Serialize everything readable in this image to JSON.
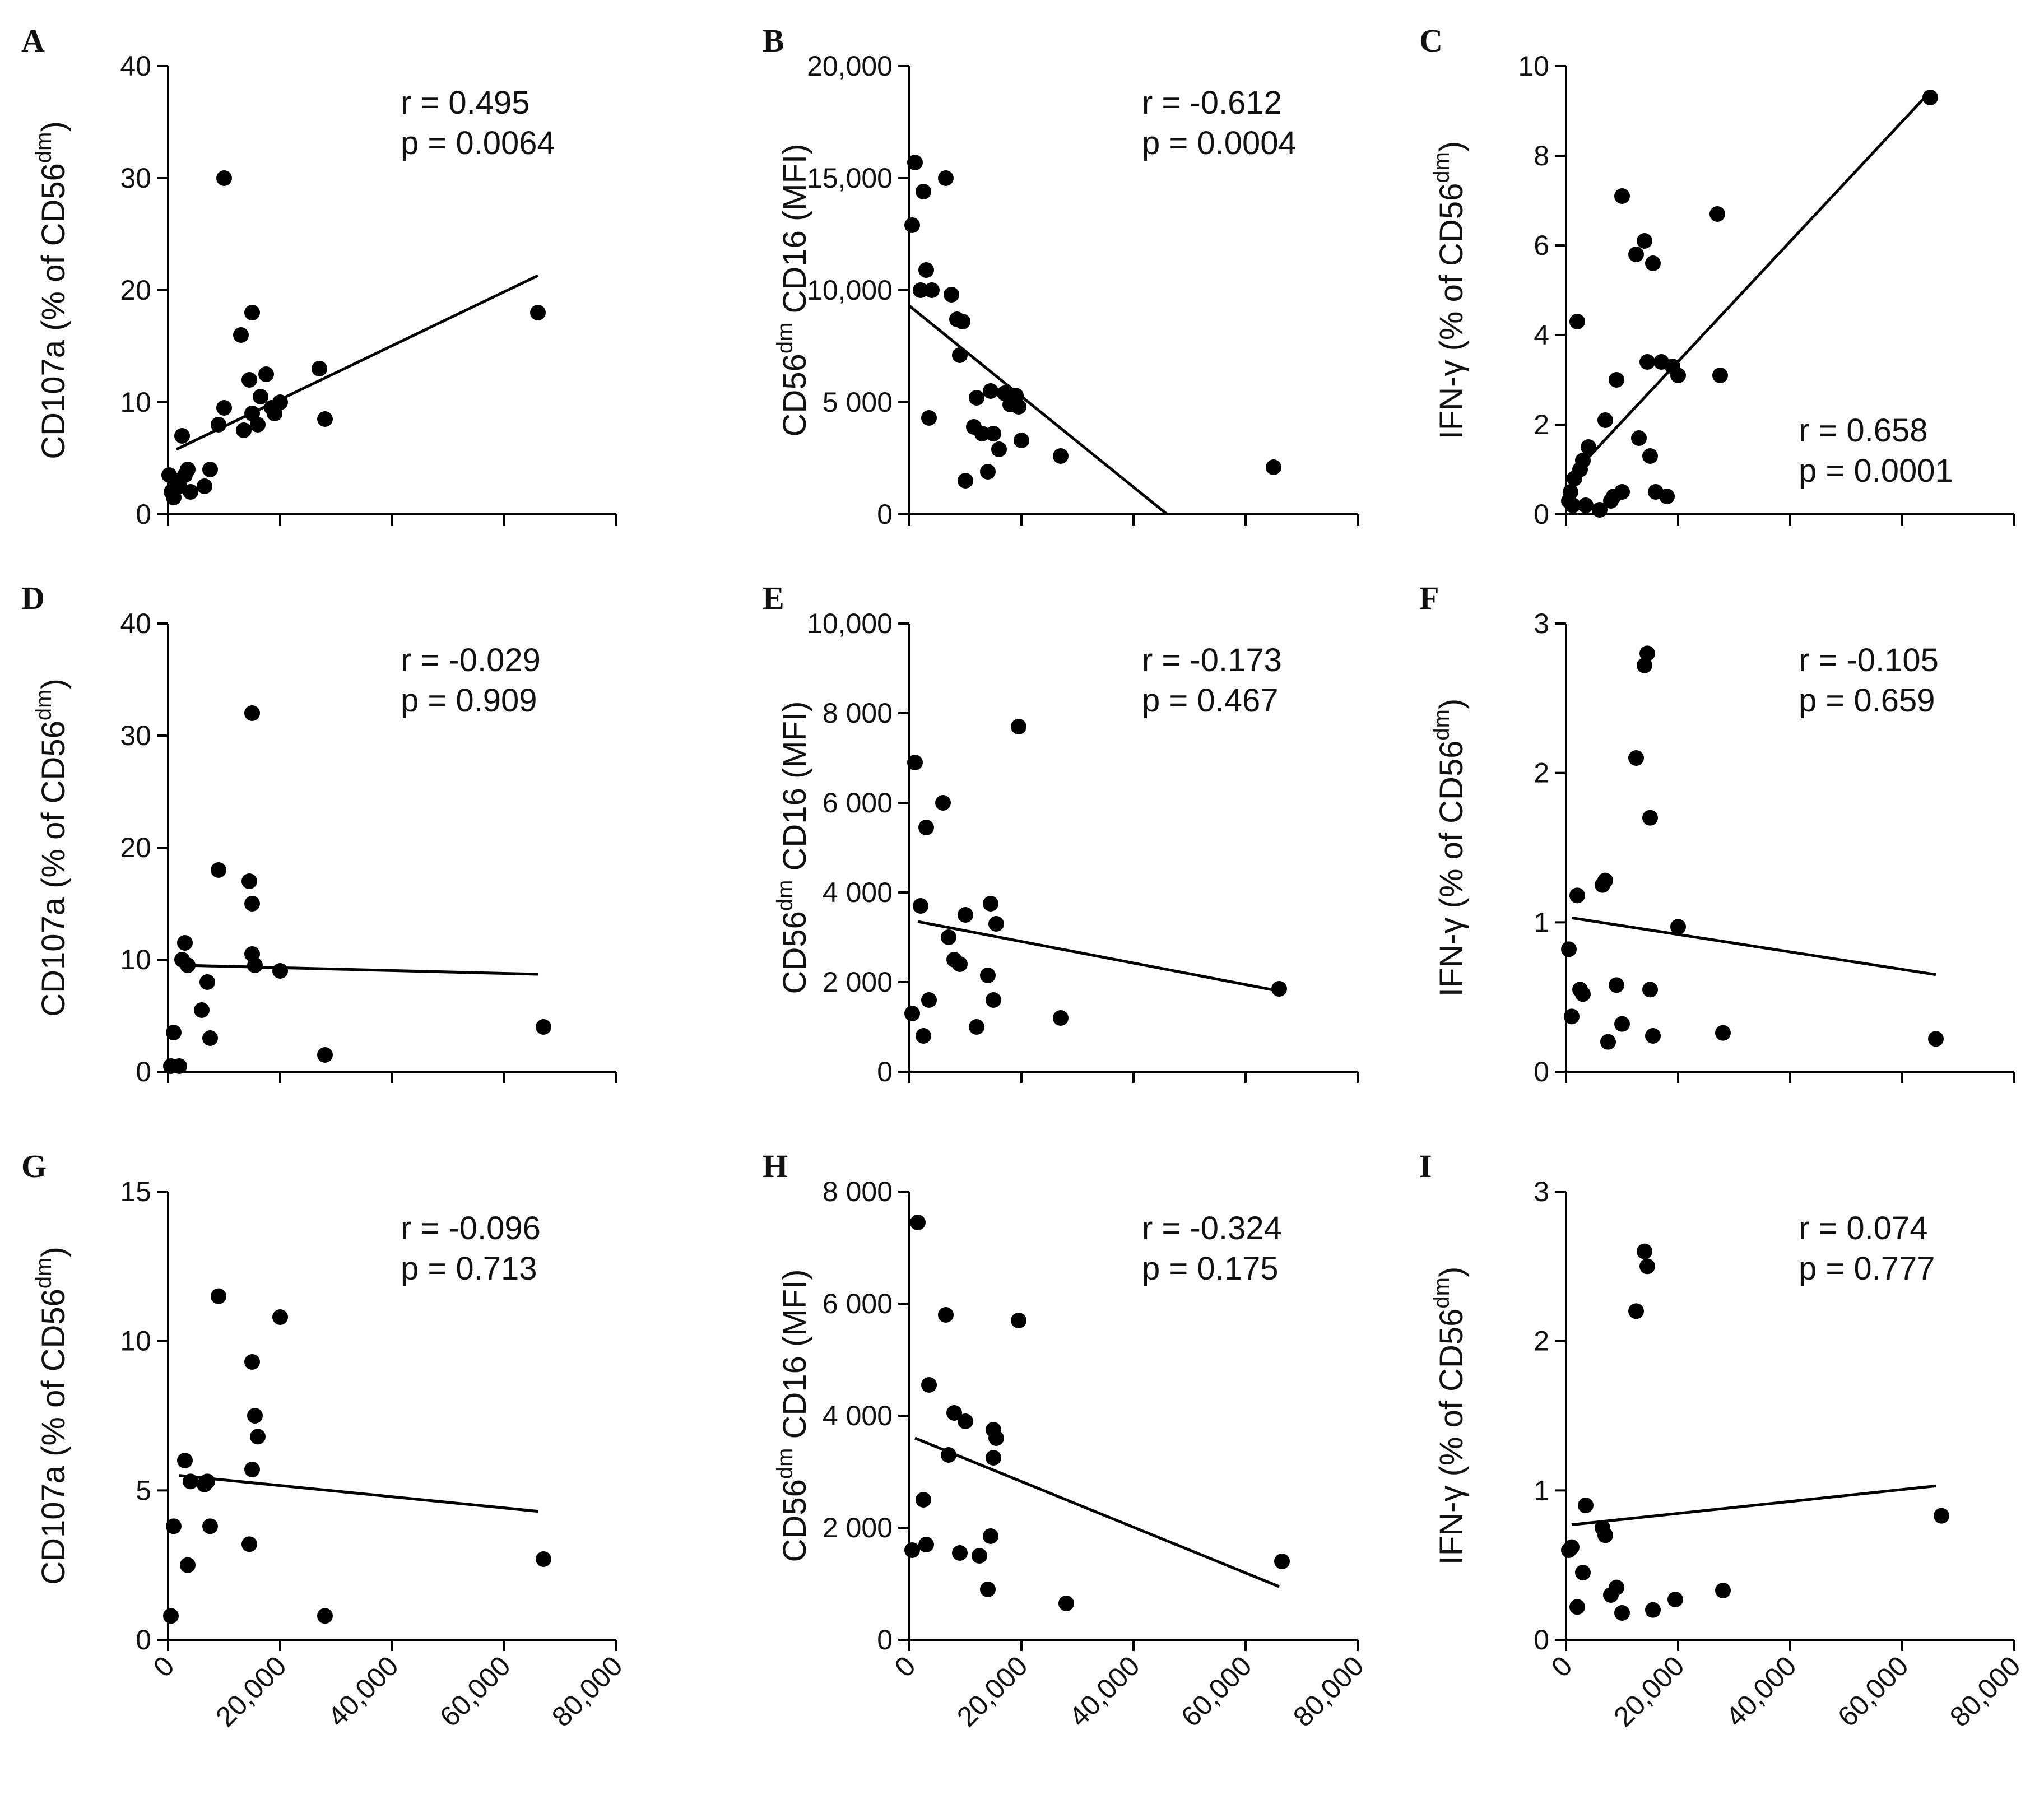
{
  "figure": {
    "point_color": "#000000",
    "axis_color": "#000000"
  },
  "chart_data": [
    {
      "panel": "A",
      "type": "scatter",
      "ylabel_main": "CD107a (% of CD56",
      "ylabel_sup": "dm",
      "ylabel_end": ")",
      "xlim": [
        0,
        80000
      ],
      "ylim": [
        0,
        40
      ],
      "yticks": [
        0,
        10,
        20,
        30,
        40
      ],
      "ytick_labels": [
        "0",
        "10",
        "20",
        "30",
        "40"
      ],
      "xticks": [
        0,
        20000,
        40000,
        60000,
        80000
      ],
      "xtick_labels": [
        "0",
        "20,000",
        "40,000",
        "60,000",
        "80,000"
      ],
      "show_xtick_labels": false,
      "stat_r": "r = 0.495",
      "stat_p": "p = 0.0064",
      "stat_pos": "top-right",
      "fit": [
        [
          1500,
          5.8
        ],
        [
          66000,
          21.3
        ]
      ],
      "x": [
        200,
        600,
        1000,
        1500,
        2000,
        2500,
        3000,
        3500,
        4000,
        6500,
        7500,
        9000,
        10000,
        10000,
        13000,
        13500,
        14500,
        15000,
        15000,
        16000,
        16500,
        17500,
        18500,
        19000,
        20000,
        27000,
        28000,
        66000
      ],
      "y": [
        3.5,
        2.0,
        1.5,
        3.0,
        2.5,
        7.0,
        3.5,
        4.0,
        2.0,
        2.5,
        4.0,
        8.0,
        9.5,
        30.0,
        16.0,
        7.5,
        12.0,
        18.0,
        9.0,
        8.0,
        10.5,
        12.5,
        9.5,
        9.0,
        10.0,
        13.0,
        8.5,
        18.0
      ]
    },
    {
      "panel": "B",
      "type": "scatter",
      "ylabel_main": "CD56",
      "ylabel_sup": "dm",
      "ylabel_end": " CD16 (MFI)",
      "xlim": [
        0,
        80000
      ],
      "ylim": [
        0,
        20000
      ],
      "yticks": [
        0,
        5000,
        10000,
        15000,
        20000
      ],
      "ytick_labels": [
        "0",
        "5 000",
        "10,000",
        "15,000",
        "20,000"
      ],
      "xticks": [
        0,
        20000,
        40000,
        60000,
        80000
      ],
      "xtick_labels": [
        "0",
        "20,000",
        "40,000",
        "60,000",
        "80,000"
      ],
      "show_xtick_labels": false,
      "stat_r": "r = -0.612",
      "stat_p": "p = 0.0004",
      "stat_pos": "top-right",
      "fit": [
        [
          0,
          9300
        ],
        [
          46000,
          0
        ]
      ],
      "x": [
        500,
        1000,
        2000,
        2500,
        3000,
        3500,
        4000,
        6500,
        7500,
        8500,
        9000,
        9500,
        10000,
        11500,
        12000,
        13000,
        14000,
        14500,
        15000,
        16000,
        17000,
        18000,
        19000,
        19500,
        20000,
        27000,
        65000
      ],
      "y": [
        12900,
        15700,
        10000,
        14400,
        10900,
        4300,
        10000,
        15000,
        9800,
        8700,
        7100,
        8600,
        1500,
        3900,
        5200,
        3600,
        1900,
        5500,
        3600,
        2900,
        5400,
        4900,
        5300,
        4800,
        3300,
        2600,
        2100
      ]
    },
    {
      "panel": "C",
      "type": "scatter",
      "ylabel_main": "IFN-γ (% of CD56",
      "ylabel_sup": "dm",
      "ylabel_end": ")",
      "xlim": [
        0,
        80000
      ],
      "ylim": [
        0,
        10
      ],
      "yticks": [
        0,
        2,
        4,
        6,
        8,
        10
      ],
      "ytick_labels": [
        "0",
        "2",
        "4",
        "6",
        "8",
        "10"
      ],
      "xticks": [
        0,
        20000,
        40000,
        60000,
        80000
      ],
      "xtick_labels": [
        "0",
        "20,000",
        "40,000",
        "60,000",
        "80,000"
      ],
      "show_xtick_labels": false,
      "stat_r": "r = 0.658",
      "stat_p": "p = 0.0001",
      "stat_pos": "bottom-right",
      "fit": [
        [
          2000,
          1.0
        ],
        [
          64000,
          9.3
        ]
      ],
      "x": [
        500,
        800,
        1200,
        1500,
        2000,
        2500,
        3000,
        3500,
        4000,
        6000,
        7000,
        8000,
        8500,
        9000,
        10000,
        10000,
        12500,
        13000,
        14000,
        14500,
        15000,
        15500,
        16000,
        17000,
        18000,
        19000,
        20000,
        27000,
        27500,
        65000
      ],
      "y": [
        0.3,
        0.5,
        0.2,
        0.8,
        4.3,
        1.0,
        1.2,
        0.2,
        1.5,
        0.1,
        2.1,
        0.3,
        0.4,
        3.0,
        7.1,
        0.5,
        5.8,
        1.7,
        6.1,
        3.4,
        1.3,
        5.6,
        0.5,
        3.4,
        0.4,
        3.3,
        3.1,
        6.7,
        3.1,
        9.3
      ]
    },
    {
      "panel": "D",
      "type": "scatter",
      "ylabel_main": "CD107a (% of CD56",
      "ylabel_sup": "dm",
      "ylabel_end": ")",
      "xlim": [
        0,
        80000
      ],
      "ylim": [
        0,
        40
      ],
      "yticks": [
        0,
        10,
        20,
        30,
        40
      ],
      "ytick_labels": [
        "0",
        "10",
        "20",
        "30",
        "40"
      ],
      "xticks": [
        0,
        20000,
        40000,
        60000,
        80000
      ],
      "xtick_labels": [
        "0",
        "20,000",
        "40,000",
        "60,000",
        "80,000"
      ],
      "show_xtick_labels": false,
      "stat_r": "r = -0.029",
      "stat_p": "p = 0.909",
      "stat_pos": "top-right",
      "fit": [
        [
          3000,
          9.5
        ],
        [
          66000,
          8.7
        ]
      ],
      "x": [
        500,
        1000,
        2000,
        2500,
        3000,
        3500,
        6000,
        7000,
        7500,
        9000,
        14500,
        15000,
        15000,
        15000,
        15500,
        20000,
        28000,
        67000
      ],
      "y": [
        0.5,
        3.5,
        0.5,
        10.0,
        11.5,
        9.5,
        5.5,
        8.0,
        3.0,
        18.0,
        17.0,
        32.0,
        15.0,
        10.5,
        9.5,
        9.0,
        1.5,
        4.0
      ]
    },
    {
      "panel": "E",
      "type": "scatter",
      "ylabel_main": "CD56",
      "ylabel_sup": "dm",
      "ylabel_end": " CD16 (MFI)",
      "xlim": [
        0,
        80000
      ],
      "ylim": [
        0,
        10000
      ],
      "yticks": [
        0,
        2000,
        4000,
        6000,
        8000,
        10000
      ],
      "ytick_labels": [
        "0",
        "2 000",
        "4 000",
        "6 000",
        "8 000",
        "10,000"
      ],
      "xticks": [
        0,
        20000,
        40000,
        60000,
        80000
      ],
      "xtick_labels": [
        "0",
        "20,000",
        "40,000",
        "60,000",
        "80,000"
      ],
      "show_xtick_labels": false,
      "stat_r": "r = -0.173",
      "stat_p": "p = 0.467",
      "stat_pos": "top-right",
      "fit": [
        [
          1500,
          3350
        ],
        [
          66000,
          1800
        ]
      ],
      "x": [
        500,
        1000,
        2000,
        2500,
        3000,
        3500,
        6000,
        7000,
        8000,
        9000,
        10000,
        12000,
        14000,
        14500,
        15000,
        15500,
        19500,
        27000,
        66000
      ],
      "y": [
        1300,
        6900,
        3700,
        800,
        5450,
        1600,
        6000,
        3000,
        2500,
        2400,
        3500,
        1000,
        2150,
        3750,
        1600,
        3300,
        7700,
        1200,
        1850
      ]
    },
    {
      "panel": "F",
      "type": "scatter",
      "ylabel_main": "IFN-γ (% of CD56",
      "ylabel_sup": "dm",
      "ylabel_end": ")",
      "xlim": [
        0,
        80000
      ],
      "ylim": [
        0,
        3
      ],
      "yticks": [
        0,
        1,
        2,
        3
      ],
      "ytick_labels": [
        "0",
        "1",
        "2",
        "3"
      ],
      "xticks": [
        0,
        20000,
        40000,
        60000,
        80000
      ],
      "xtick_labels": [
        "0",
        "20,000",
        "40,000",
        "60,000",
        "80,000"
      ],
      "show_xtick_labels": false,
      "stat_r": "r = -0.105",
      "stat_p": "p = 0.659",
      "stat_pos": "top-right",
      "fit": [
        [
          1000,
          1.03
        ],
        [
          66000,
          0.65
        ]
      ],
      "x": [
        500,
        1000,
        2000,
        2500,
        3000,
        6500,
        7000,
        7500,
        9000,
        10000,
        12500,
        14000,
        14500,
        15000,
        15000,
        15500,
        20000,
        28000,
        66000
      ],
      "y": [
        0.82,
        0.37,
        1.18,
        0.55,
        0.52,
        1.25,
        1.28,
        0.2,
        0.58,
        0.32,
        2.1,
        2.72,
        2.8,
        1.7,
        0.55,
        0.24,
        0.97,
        0.26,
        0.22
      ]
    },
    {
      "panel": "G",
      "type": "scatter",
      "ylabel_main": "CD107a (% of CD56",
      "ylabel_sup": "dm",
      "ylabel_end": ")",
      "xlim": [
        0,
        80000
      ],
      "ylim": [
        0,
        15
      ],
      "yticks": [
        0,
        5,
        10,
        15
      ],
      "ytick_labels": [
        "0",
        "5",
        "10",
        "15"
      ],
      "xticks": [
        0,
        20000,
        40000,
        60000,
        80000
      ],
      "xtick_labels": [
        "0",
        "20,000",
        "40,000",
        "60,000",
        "80,000"
      ],
      "show_xtick_labels": true,
      "stat_r": "r = -0.096",
      "stat_p": "p = 0.713",
      "stat_pos": "top-right",
      "fit": [
        [
          2000,
          5.5
        ],
        [
          66000,
          4.3
        ]
      ],
      "x": [
        500,
        1000,
        3000,
        3500,
        4000,
        6500,
        7000,
        7500,
        9000,
        14500,
        15000,
        15000,
        15500,
        16000,
        20000,
        28000,
        67000
      ],
      "y": [
        0.8,
        3.8,
        6.0,
        2.5,
        5.3,
        5.2,
        5.3,
        3.8,
        11.5,
        3.2,
        9.3,
        5.7,
        7.5,
        6.8,
        10.8,
        0.8,
        2.7
      ]
    },
    {
      "panel": "H",
      "type": "scatter",
      "ylabel_main": "CD56",
      "ylabel_sup": "dm",
      "ylabel_end": " CD16 (MFI)",
      "xlim": [
        0,
        80000
      ],
      "ylim": [
        0,
        8000
      ],
      "yticks": [
        0,
        2000,
        4000,
        6000,
        8000
      ],
      "ytick_labels": [
        "0",
        "2 000",
        "4 000",
        "6 000",
        "8 000"
      ],
      "xticks": [
        0,
        20000,
        40000,
        60000,
        80000
      ],
      "xtick_labels": [
        "0",
        "20,000",
        "40,000",
        "60,000",
        "80,000"
      ],
      "show_xtick_labels": true,
      "stat_r": "r = -0.324",
      "stat_p": "p = 0.175",
      "stat_pos": "top-right",
      "fit": [
        [
          1000,
          3600
        ],
        [
          66000,
          950
        ]
      ],
      "x": [
        500,
        1500,
        2500,
        3000,
        3500,
        6500,
        7000,
        8000,
        9000,
        10000,
        12500,
        14000,
        14500,
        15000,
        15000,
        15500,
        19500,
        28000,
        66500
      ],
      "y": [
        1600,
        7450,
        2500,
        1700,
        4550,
        5800,
        3300,
        4050,
        1550,
        3900,
        1500,
        900,
        1850,
        3750,
        3250,
        3600,
        5700,
        650,
        1400
      ]
    },
    {
      "panel": "I",
      "type": "scatter",
      "ylabel_main": "IFN-γ (% of CD56",
      "ylabel_sup": "dm",
      "ylabel_end": ")",
      "xlim": [
        0,
        80000
      ],
      "ylim": [
        0,
        3
      ],
      "yticks": [
        0,
        1,
        2,
        3
      ],
      "ytick_labels": [
        "0",
        "1",
        "2",
        "3"
      ],
      "xticks": [
        0,
        20000,
        40000,
        60000,
        80000
      ],
      "xtick_labels": [
        "0",
        "20,000",
        "40,000",
        "60,000",
        "80,000"
      ],
      "show_xtick_labels": true,
      "stat_r": "r = 0.074",
      "stat_p": "p = 0.777",
      "stat_pos": "top-right",
      "fit": [
        [
          1000,
          0.77
        ],
        [
          66000,
          1.03
        ]
      ],
      "x": [
        500,
        1000,
        2000,
        3000,
        3500,
        6500,
        7000,
        8000,
        9000,
        10000,
        12500,
        14000,
        14500,
        15500,
        19500,
        28000,
        67000
      ],
      "y": [
        0.6,
        0.62,
        0.22,
        0.45,
        0.9,
        0.75,
        0.7,
        0.3,
        0.35,
        0.18,
        2.2,
        2.6,
        2.5,
        0.2,
        0.27,
        0.33,
        0.83
      ]
    }
  ]
}
